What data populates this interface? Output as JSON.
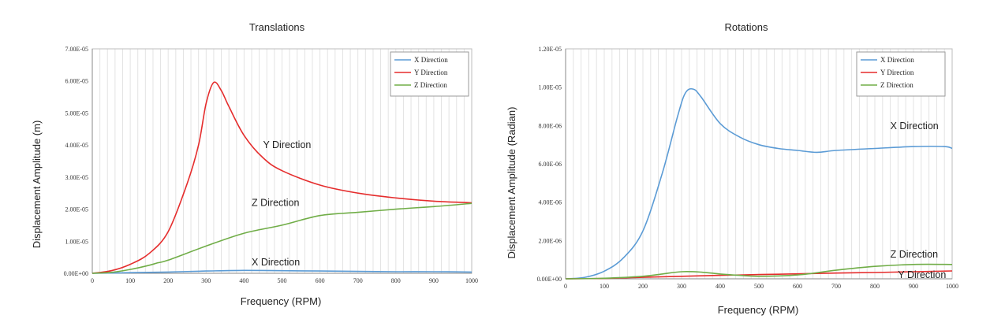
{
  "chart_data": [
    {
      "type": "line",
      "title": "Translations",
      "xlabel": "Frequency (RPM)",
      "ylabel": "Displacement  Amplitude  (m)",
      "xlim": [
        0,
        1000
      ],
      "ylim": [
        0,
        7e-05
      ],
      "x_ticks": [
        "0",
        "100",
        "200",
        "300",
        "400",
        "500",
        "600",
        "700",
        "800",
        "900",
        "1000"
      ],
      "y_ticks": [
        "0.00E+00",
        "1.00E-05",
        "2.00E-05",
        "3.00E-05",
        "4.00E-05",
        "5.00E-05",
        "6.00E-05",
        "7.00E-05"
      ],
      "grid": true,
      "legend_position": "top-right",
      "series": [
        {
          "name": "X Direction",
          "color": "#5b9bd5",
          "x": [
            0,
            100,
            200,
            300,
            400,
            500,
            600,
            700,
            800,
            900,
            1000
          ],
          "y": [
            0,
            2e-07,
            4e-07,
            7e-07,
            9e-07,
            8e-07,
            7e-07,
            6e-07,
            5e-07,
            5e-07,
            4e-07
          ]
        },
        {
          "name": "Y Direction",
          "color": "#e52d2d",
          "x": [
            0,
            50,
            100,
            150,
            200,
            250,
            280,
            300,
            320,
            340,
            360,
            400,
            450,
            500,
            600,
            700,
            800,
            900,
            1000
          ],
          "y": [
            0,
            8e-07,
            2.8e-06,
            6.2e-06,
            1.3e-05,
            2.8e-05,
            4e-05,
            5.3e-05,
            5.95e-05,
            5.7e-05,
            5.2e-05,
            4.3e-05,
            3.6e-05,
            3.2e-05,
            2.75e-05,
            2.5e-05,
            2.35e-05,
            2.25e-05,
            2.2e-05
          ]
        },
        {
          "name": "Z Direction",
          "color": "#70ad47",
          "x": [
            0,
            50,
            100,
            150,
            170,
            200,
            300,
            400,
            500,
            600,
            700,
            800,
            900,
            1000
          ],
          "y": [
            0,
            3e-07,
            1.2e-06,
            2.5e-06,
            3.2e-06,
            4.1e-06,
            8.5e-06,
            1.25e-05,
            1.5e-05,
            1.8e-05,
            1.9e-05,
            2e-05,
            2.08e-05,
            2.18e-05
          ]
        }
      ],
      "annotations": [
        {
          "text": "Y Direction",
          "x": 450,
          "y": 3.9e-05
        },
        {
          "text": "Z Direction",
          "x": 420,
          "y": 2.1e-05
        },
        {
          "text": "X Direction",
          "x": 420,
          "y": 2.5e-06
        }
      ]
    },
    {
      "type": "line",
      "title": "Rotations",
      "xlabel": "Frequency (RPM)",
      "ylabel": "Displacement  Amplitude  (Radian)",
      "xlim": [
        0,
        1000
      ],
      "ylim": [
        0,
        1.2e-05
      ],
      "x_ticks": [
        "0",
        "100",
        "200",
        "300",
        "400",
        "500",
        "600",
        "700",
        "800",
        "900",
        "1000"
      ],
      "y_ticks": [
        "0.00E+00",
        "2.00E-06",
        "4.00E-06",
        "6.00E-06",
        "8.00E-06",
        "1.00E-05",
        "1.20E-05"
      ],
      "grid": true,
      "legend_position": "top-right",
      "series": [
        {
          "name": "X Direction",
          "color": "#5b9bd5",
          "x": [
            0,
            50,
            100,
            150,
            200,
            250,
            290,
            310,
            330,
            350,
            400,
            450,
            500,
            550,
            600,
            650,
            700,
            800,
            900,
            980,
            1000
          ],
          "y": [
            0,
            8e-08,
            4e-07,
            1.1e-06,
            2.5e-06,
            5.5e-06,
            8.5e-06,
            9.7e-06,
            9.9e-06,
            9.5e-06,
            8.1e-06,
            7.4e-06,
            7e-06,
            6.8e-06,
            6.7e-06,
            6.6e-06,
            6.7e-06,
            6.8e-06,
            6.9e-06,
            6.9e-06,
            6.8e-06
          ]
        },
        {
          "name": "Y Direction",
          "color": "#e52d2d",
          "x": [
            0,
            100,
            200,
            300,
            400,
            500,
            600,
            700,
            800,
            900,
            1000
          ],
          "y": [
            0,
            2e-08,
            8e-08,
            1.3e-07,
            1.8e-07,
            2.2e-07,
            2.6e-07,
            3e-07,
            3.3e-07,
            3.7e-07,
            4.1e-07
          ]
        },
        {
          "name": "Z Direction",
          "color": "#70ad47",
          "x": [
            0,
            100,
            200,
            250,
            300,
            350,
            400,
            450,
            500,
            600,
            700,
            800,
            900,
            1000
          ],
          "y": [
            0,
            3e-08,
            1.3e-07,
            2.5e-07,
            3.7e-07,
            3.5e-07,
            2.5e-07,
            1.8e-07,
            1.3e-07,
            2e-07,
            4.5e-07,
            6.5e-07,
            7.5e-07,
            7.5e-07
          ]
        }
      ],
      "annotations": [
        {
          "text": "X Direction",
          "x": 840,
          "y": 7.8e-06
        },
        {
          "text": "Z Direction",
          "x": 840,
          "y": 1.1e-06
        },
        {
          "text": "Y Direction",
          "x": 860,
          "y": 5e-08
        }
      ]
    }
  ]
}
